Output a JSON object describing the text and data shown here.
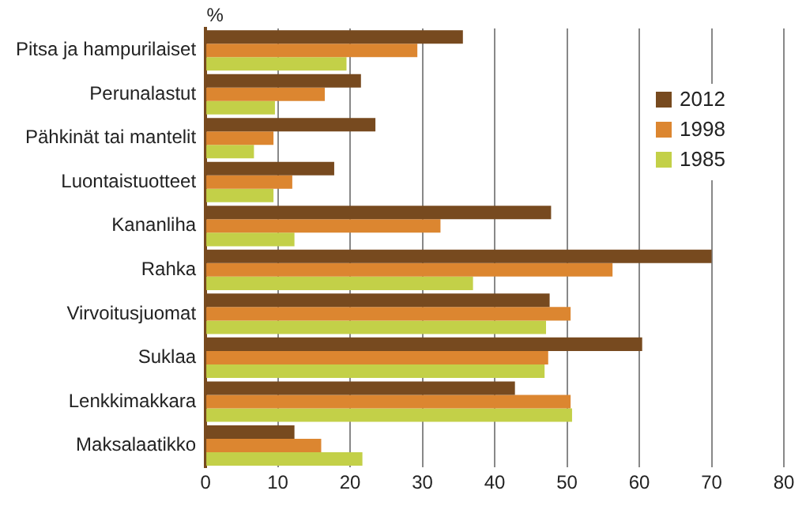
{
  "chart_data": {
    "type": "bar",
    "orientation": "horizontal",
    "xlabel": "%",
    "categories": [
      "Pitsa ja hampurilaiset",
      "Perunalastut",
      "Pähkinät tai mantelit",
      "Luontaistuotteet",
      "Kananliha",
      "Rahka",
      "Virvoitusjuomat",
      "Suklaa",
      "Lenkkimakkara",
      "Maksalaatikko"
    ],
    "series": [
      {
        "name": "2012",
        "color": "#774a1f",
        "values": [
          35.6,
          21.5,
          23.5,
          17.8,
          47.8,
          70.0,
          47.6,
          60.4,
          42.8,
          12.3
        ]
      },
      {
        "name": "1998",
        "color": "#dc8630",
        "values": [
          29.3,
          16.5,
          9.4,
          12.0,
          32.5,
          56.3,
          50.5,
          47.4,
          50.5,
          16.0
        ]
      },
      {
        "name": "1985",
        "color": "#c3d048",
        "values": [
          19.5,
          9.6,
          6.7,
          9.4,
          12.3,
          37.0,
          47.1,
          46.9,
          50.7,
          21.7
        ]
      }
    ],
    "xlim": [
      0,
      80
    ],
    "xticks": [
      0,
      10,
      20,
      30,
      40,
      50,
      60,
      70,
      80
    ],
    "grid": "x",
    "legend": "right"
  }
}
